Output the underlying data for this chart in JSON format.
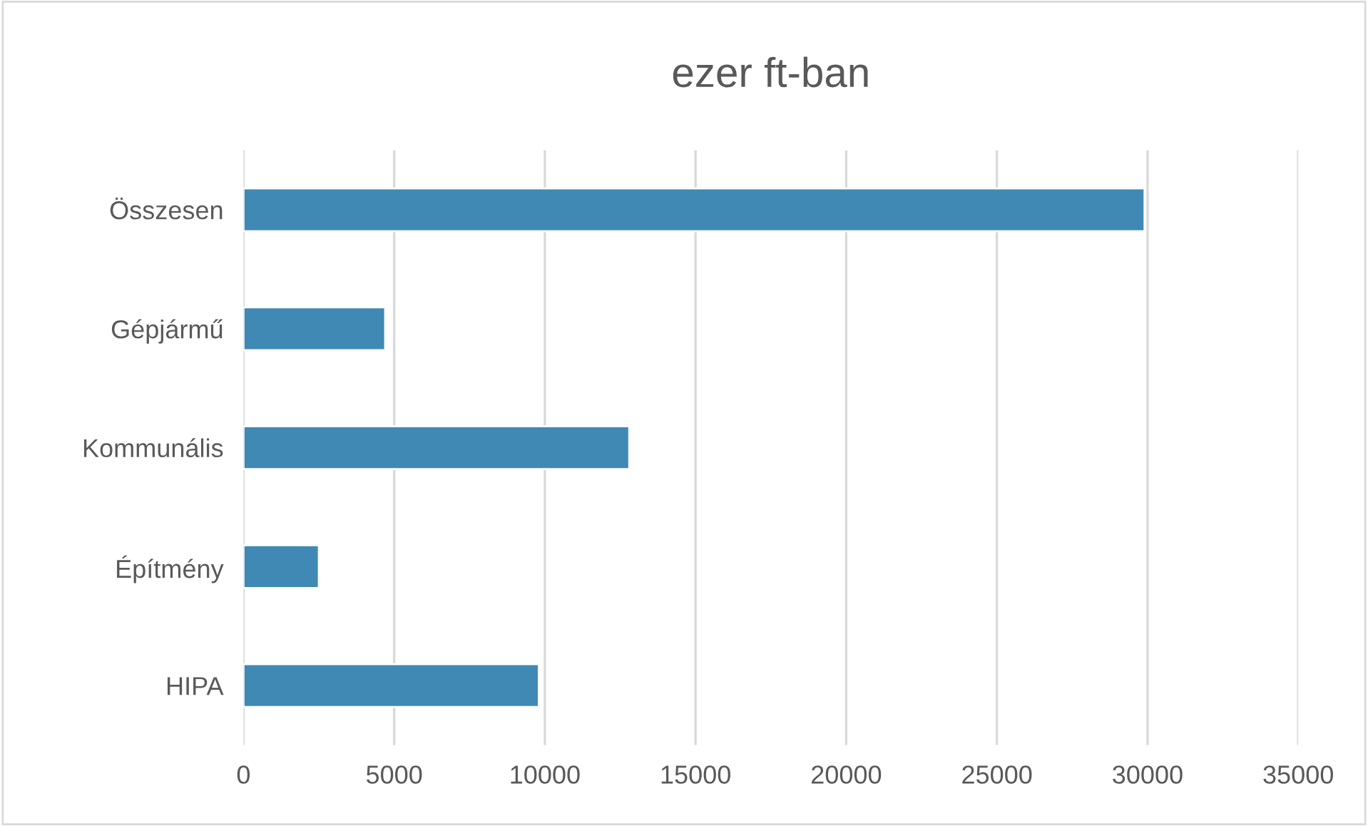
{
  "chart_data": {
    "type": "bar",
    "orientation": "horizontal",
    "title": "ezer ft-ban",
    "categories": [
      "Összesen",
      "Gépjármű",
      "Kommunális",
      "Építmény",
      "HIPA"
    ],
    "values": [
      29900,
      4700,
      12800,
      2500,
      9800
    ],
    "color": "#3f89b4",
    "xlim": [
      0,
      35000
    ],
    "xticks": [
      0,
      5000,
      10000,
      15000,
      20000,
      25000,
      30000,
      35000
    ],
    "grid": "x"
  }
}
